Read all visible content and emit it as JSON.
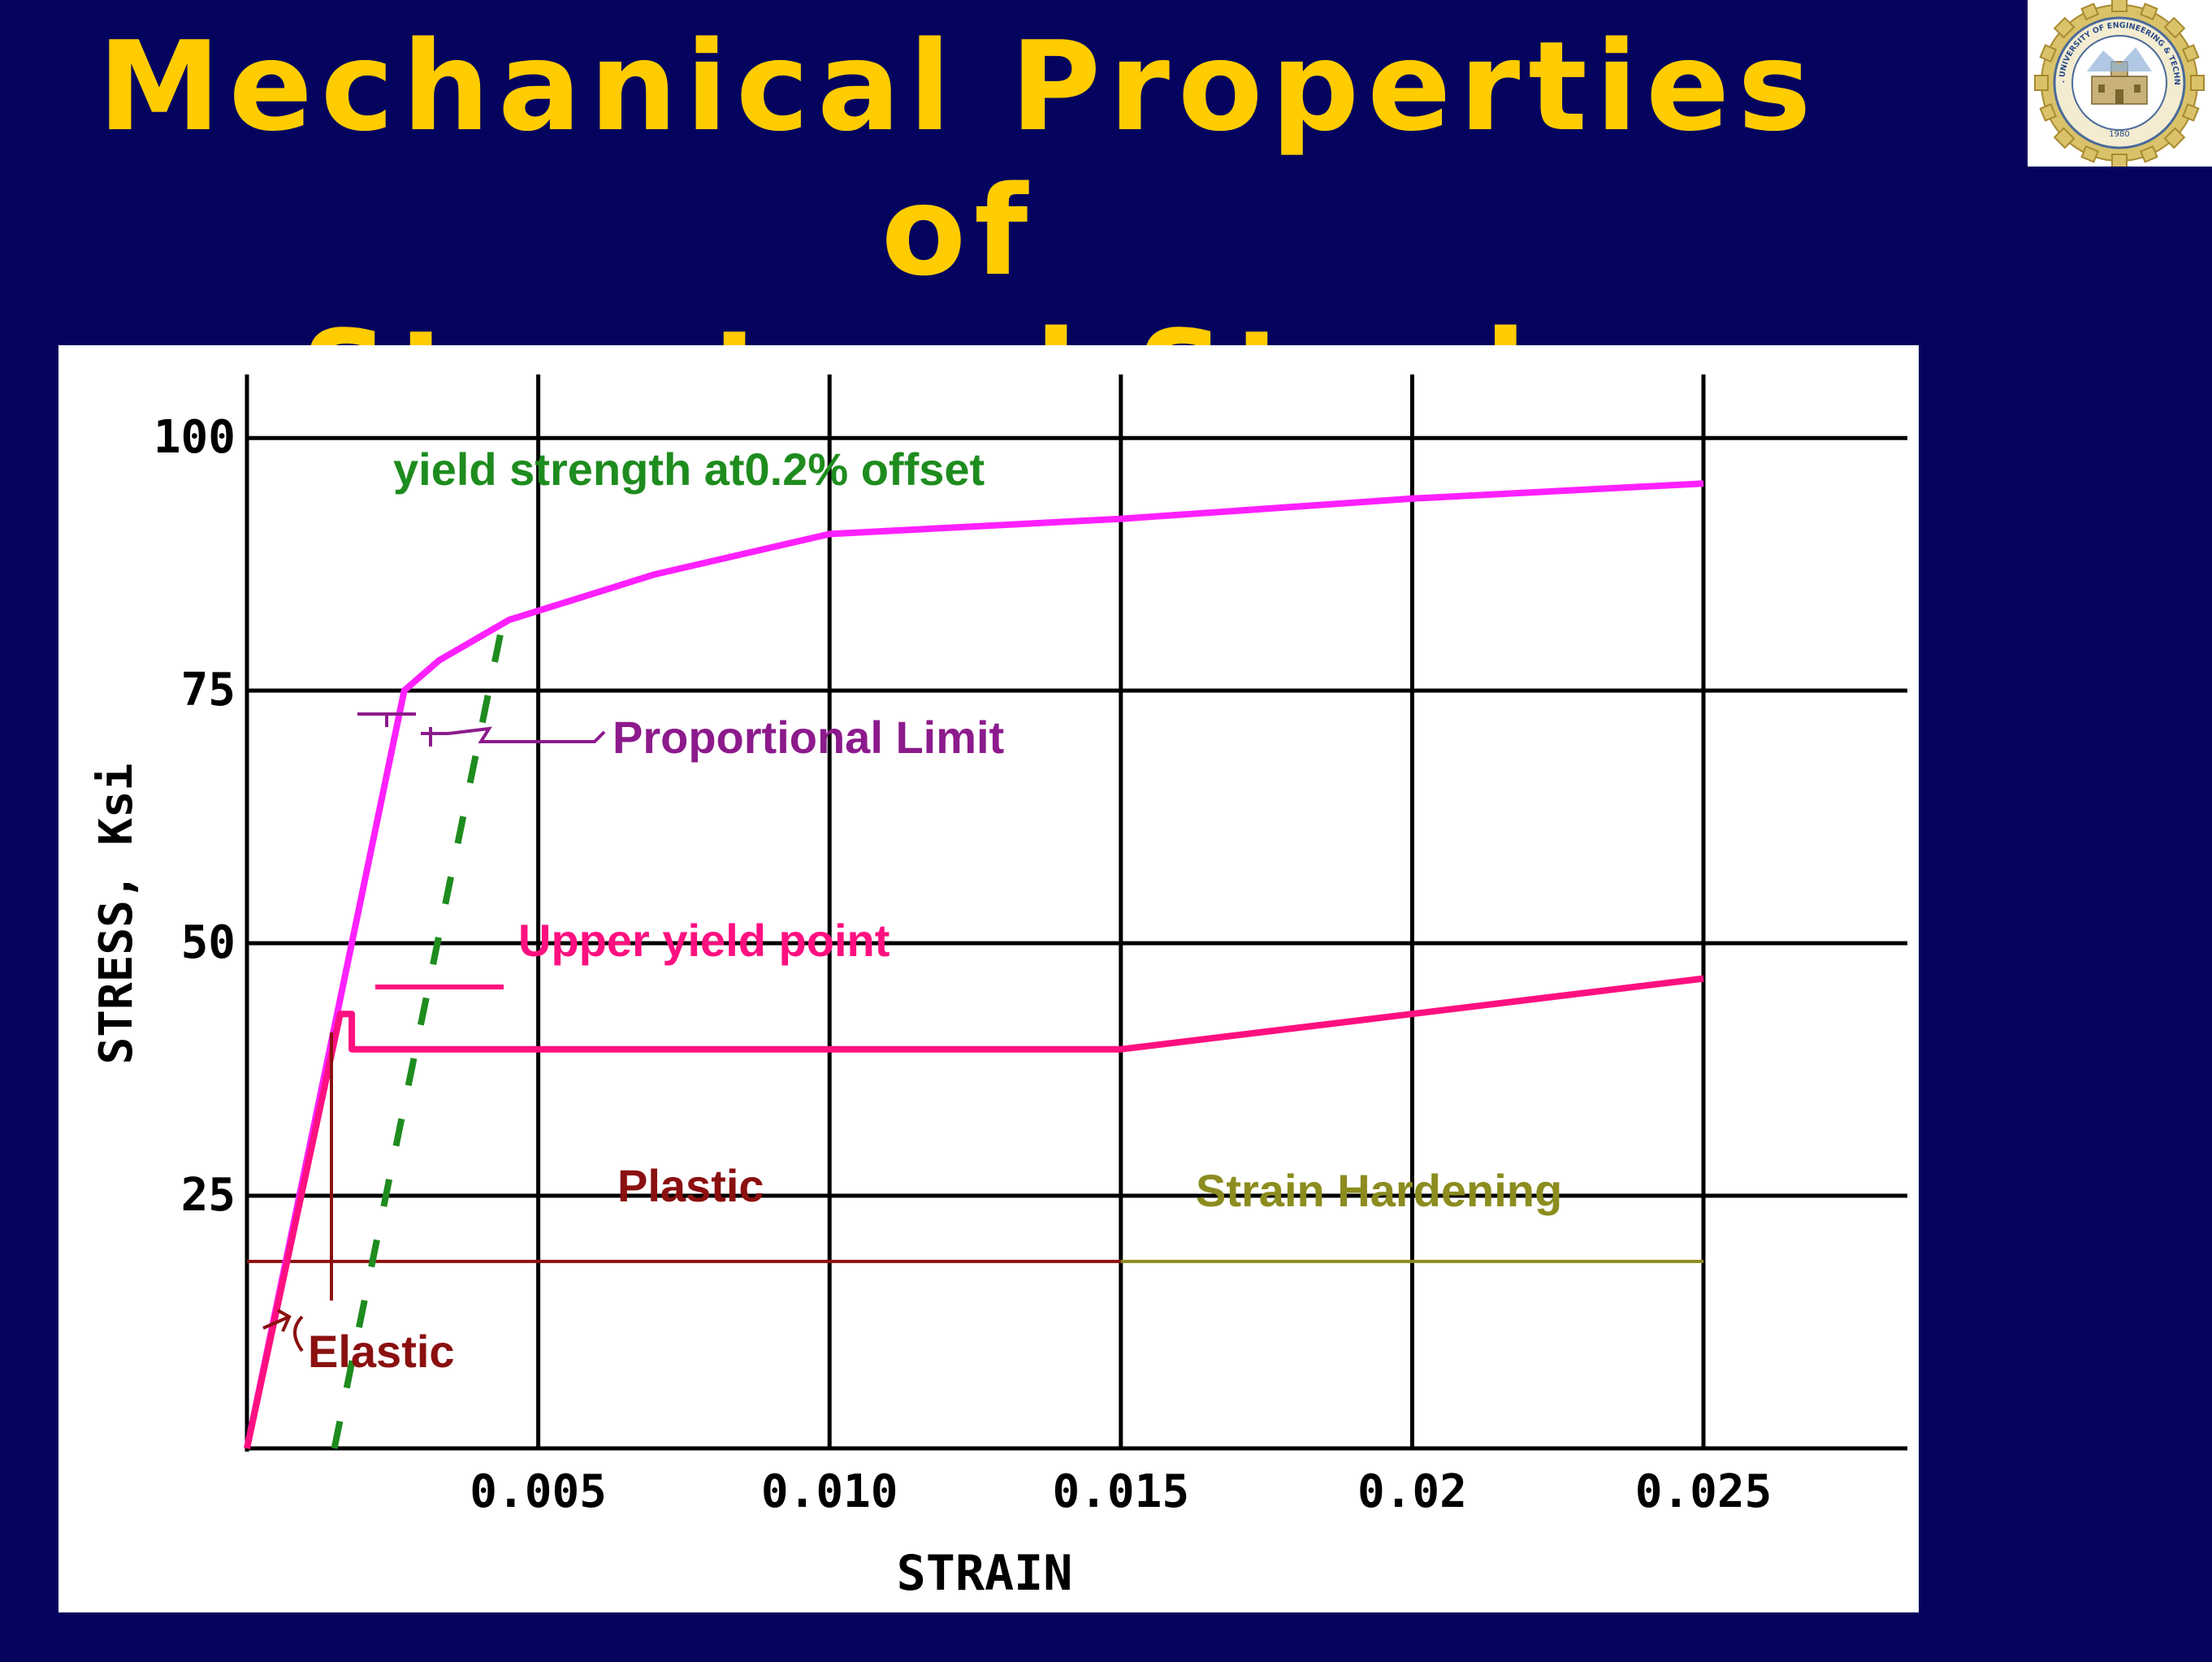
{
  "title": {
    "line1": "Mechanical Properties of",
    "line2": "Structural Steels"
  },
  "colors": {
    "background": "#04045e",
    "title": "#ffcc00",
    "grid": "#000000",
    "upper_curve": "#ff20ff",
    "lower_curve": "#ff1080",
    "offset_line": "#1e8c1e",
    "proportional_limit": "#8c1a8c",
    "plastic": "#8b1010",
    "strain_hardening": "#8c8c20"
  },
  "logo": {
    "icon": "university-seal-icon",
    "text": "N.W.F.P. UNIVERSITY OF ENGINEERING & TECHNOLOGY",
    "year": "1980"
  },
  "chart_data": {
    "type": "line",
    "xlabel": "STRAIN",
    "ylabel": "STRESS, Ksi",
    "xlim": [
      0,
      0.0285
    ],
    "ylim": [
      0,
      105
    ],
    "grid": true,
    "x_ticks": [
      {
        "value": 0.005,
        "label": "0.005"
      },
      {
        "value": 0.01,
        "label": "0.010"
      },
      {
        "value": 0.015,
        "label": "0.015"
      },
      {
        "value": 0.02,
        "label": "0.02"
      },
      {
        "value": 0.025,
        "label": "0.025"
      }
    ],
    "y_ticks": [
      {
        "value": 25,
        "label": "25"
      },
      {
        "value": 50,
        "label": "50"
      },
      {
        "value": 75,
        "label": "75"
      },
      {
        "value": 100,
        "label": "100"
      }
    ],
    "series": [
      {
        "key": "upper",
        "style": "solid",
        "x": [
          0,
          0.0027,
          0.0033,
          0.0045,
          0.007,
          0.01,
          0.015,
          0.02,
          0.025
        ],
        "y": [
          0,
          75,
          78,
          82,
          86.5,
          90.5,
          92,
          94,
          95.5
        ]
      },
      {
        "key": "lower",
        "style": "solid",
        "x": [
          0,
          0.0016,
          0.0018,
          0.0018,
          0.015,
          0.02,
          0.025
        ],
        "y": [
          0,
          43,
          43,
          39.5,
          39.5,
          43,
          46.5
        ]
      },
      {
        "key": "offset",
        "style": "dashed",
        "x": [
          0.0015,
          0.0044
        ],
        "y": [
          0,
          82
        ]
      }
    ],
    "ranges": [
      {
        "key": "plastic",
        "x": [
          0,
          0.015
        ],
        "y": 18.5
      },
      {
        "key": "strain_hardening",
        "x": [
          0.015,
          0.025
        ],
        "y": 18.5
      }
    ],
    "annotations": {
      "yield_strength": "yield strength at0.2% offset",
      "proportional_limit": "Proportional Limit",
      "upper_yield_point": "Upper yield point",
      "plastic": "Plastic",
      "strain_hardening": "Strain Hardening",
      "elastic": "Elastic"
    }
  }
}
